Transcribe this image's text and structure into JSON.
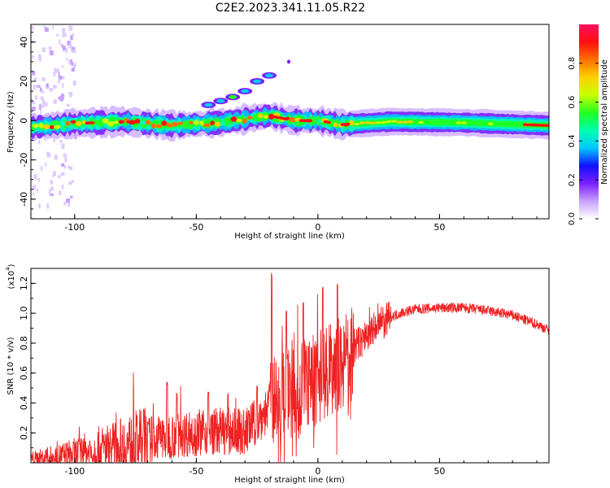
{
  "title": "C2E2.2023.341.11.05.R22",
  "chart_data": [
    {
      "type": "heatmap",
      "xlabel": "Height of straight line (km)",
      "ylabel": "Frequency (Hz)",
      "xlim": [
        -118,
        95
      ],
      "ylim": [
        -50,
        49
      ],
      "xticks": [
        -100,
        -50,
        0,
        50
      ],
      "xtick_labels": [
        "-100",
        "-50",
        "0",
        "50"
      ],
      "yticks": [
        -40,
        -20,
        0,
        20,
        40
      ],
      "ytick_labels": [
        "-40",
        "-20",
        "0",
        "20",
        "40"
      ],
      "colorbar": {
        "label": "Normalized spectral amplitude",
        "range": [
          0.0,
          1.0
        ],
        "ticks": [
          0.0,
          0.2,
          0.4,
          0.6,
          0.8
        ],
        "tick_labels": [
          "0.0",
          "0.2",
          "0.4",
          "0.6",
          "0.8"
        ],
        "colormap": [
          "#ffffff",
          "#c8a0ff",
          "#7a20ff",
          "#1010ff",
          "#00c8ff",
          "#00ffb0",
          "#20ff20",
          "#c8ff00",
          "#ffd000",
          "#ff7000",
          "#ff1010",
          "#ff1060"
        ]
      },
      "band_center_hz": [
        [
          -118,
          -3.5
        ],
        [
          -100,
          -1.5
        ],
        [
          -80,
          -0.5
        ],
        [
          -60,
          -2.5
        ],
        [
          -40,
          -1.0
        ],
        [
          -20,
          2.5
        ],
        [
          -10,
          0.0
        ],
        [
          0,
          0.0
        ],
        [
          10,
          -2.0
        ],
        [
          30,
          -0.5
        ],
        [
          60,
          -1.0
        ],
        [
          95,
          -2.5
        ]
      ],
      "side_branch_hz": [
        [
          -45,
          8.0
        ],
        [
          -40,
          10.0
        ],
        [
          -35,
          12.0
        ],
        [
          -30,
          15.0
        ],
        [
          -25,
          20.0
        ],
        [
          -20,
          23.0
        ]
      ]
    },
    {
      "type": "line",
      "xlabel": "Height of straight line (km)",
      "ylabel": "SNR (10 * v/v)",
      "y_multiplier": "(x10",
      "y_multiplier_exp": "4",
      "y_multiplier_close": ")",
      "xlim": [
        -118,
        95
      ],
      "ylim": [
        0.0,
        1.3
      ],
      "xticks": [
        -100,
        -50,
        0,
        50
      ],
      "xtick_labels": [
        "-100",
        "-50",
        "0",
        "50"
      ],
      "yticks": [
        0.2,
        0.4,
        0.6,
        0.8,
        1.0,
        1.2
      ],
      "ytick_labels": [
        "0.2",
        "0.4",
        "0.6",
        "0.8",
        "1.0",
        "1.2"
      ],
      "series": [
        {
          "color": "#ee2222",
          "envelope_x": [
            -118,
            -110,
            -100,
            -90,
            -80,
            -70,
            -60,
            -50,
            -40,
            -30,
            -25,
            -20,
            -15,
            -10,
            -5,
            0,
            5,
            10,
            15,
            20,
            25,
            30,
            35,
            40,
            50,
            60,
            70,
            80,
            90,
            95
          ],
          "envelope_y": [
            0.03,
            0.04,
            0.06,
            0.1,
            0.13,
            0.17,
            0.2,
            0.22,
            0.23,
            0.22,
            0.3,
            0.38,
            0.48,
            0.52,
            0.56,
            0.6,
            0.64,
            0.7,
            0.78,
            0.86,
            0.93,
            0.98,
            1.01,
            1.03,
            1.04,
            1.04,
            1.02,
            0.99,
            0.93,
            0.89
          ],
          "peaks": [
            [
              -62,
              0.55
            ],
            [
              -58,
              0.48
            ],
            [
              -45,
              0.48
            ],
            [
              -37,
              0.48
            ],
            [
              -25,
              0.52
            ],
            [
              -19,
              1.27
            ],
            [
              -13,
              1.03
            ],
            [
              -6,
              1.09
            ],
            [
              2,
              1.19
            ],
            [
              8,
              1.2
            ],
            [
              12,
              0.83
            ]
          ]
        }
      ]
    }
  ]
}
